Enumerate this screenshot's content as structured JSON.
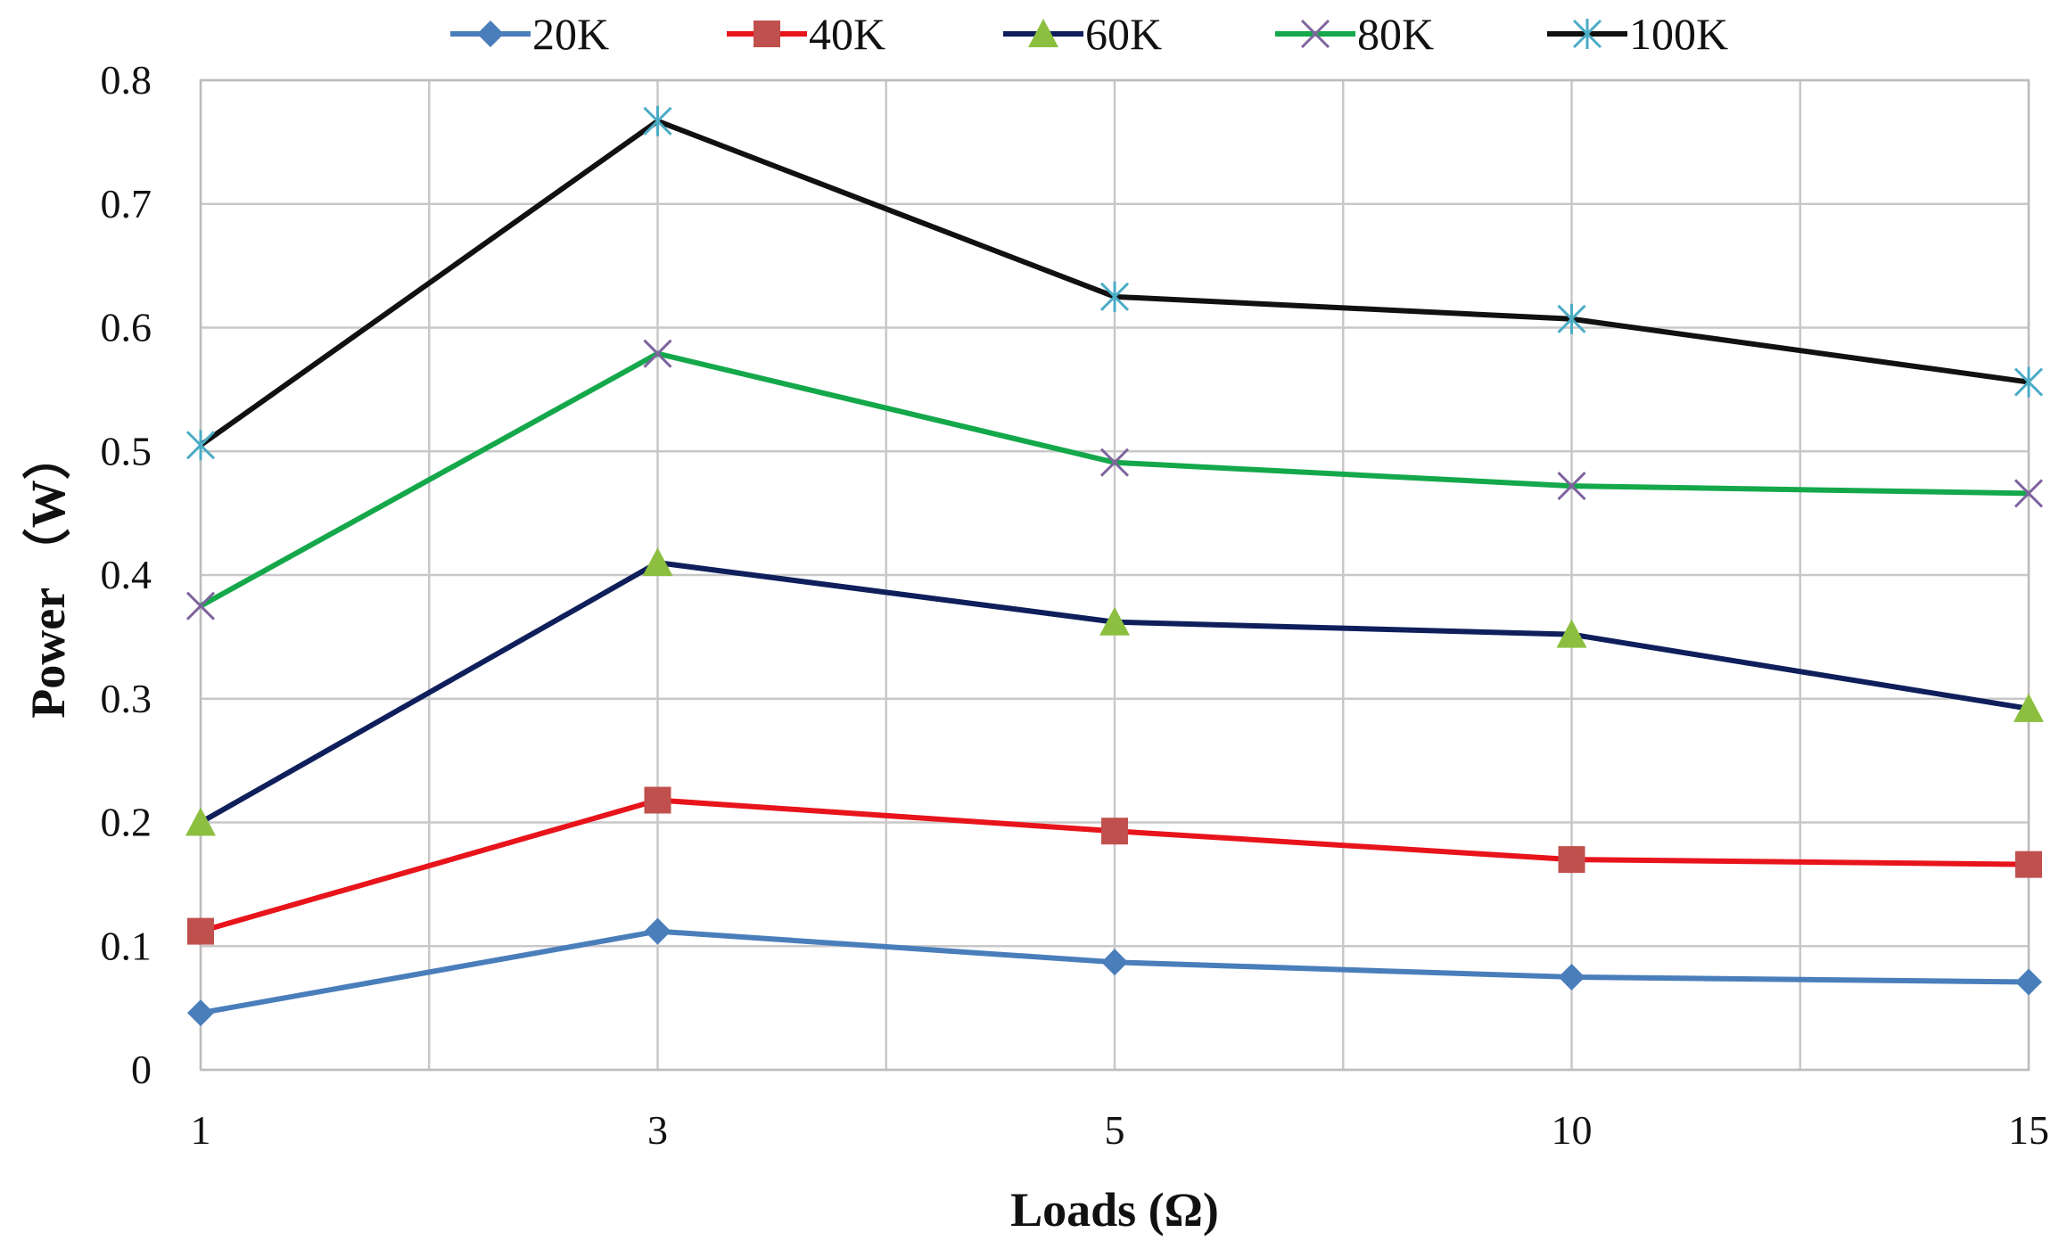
{
  "chart_data": {
    "type": "line",
    "categories": [
      "1",
      "3",
      "5",
      "10",
      "15"
    ],
    "xlabel": "Loads (Ω)",
    "ylabel": "Power （W）",
    "ylim": [
      0,
      0.8
    ],
    "yticks": [
      "0",
      "0.1",
      "0.2",
      "0.3",
      "0.4",
      "0.5",
      "0.6",
      "0.7",
      "0.8"
    ],
    "grid": true,
    "legend_position": "top",
    "series": [
      {
        "name": "20K",
        "values": [
          0.046,
          0.112,
          0.087,
          0.075,
          0.071
        ],
        "color": "#4a7ebb",
        "marker": "diamond",
        "marker_color": "#4a7ebb"
      },
      {
        "name": "40K",
        "values": [
          0.112,
          0.218,
          0.193,
          0.17,
          0.166
        ],
        "color": "#e8141b",
        "marker": "square",
        "marker_color": "#c0504d"
      },
      {
        "name": "60K",
        "values": [
          0.2,
          0.41,
          0.362,
          0.352,
          0.292
        ],
        "color": "#0e1f5b",
        "marker": "triangle",
        "marker_color": "#8cbf3f"
      },
      {
        "name": "80K",
        "values": [
          0.375,
          0.579,
          0.491,
          0.472,
          0.466
        ],
        "color": "#14a84b",
        "marker": "x",
        "marker_color": "#7e649e"
      },
      {
        "name": "100K",
        "values": [
          0.505,
          0.767,
          0.625,
          0.607,
          0.556
        ],
        "color": "#111111",
        "marker": "star",
        "marker_color": "#4bacc6"
      }
    ]
  }
}
